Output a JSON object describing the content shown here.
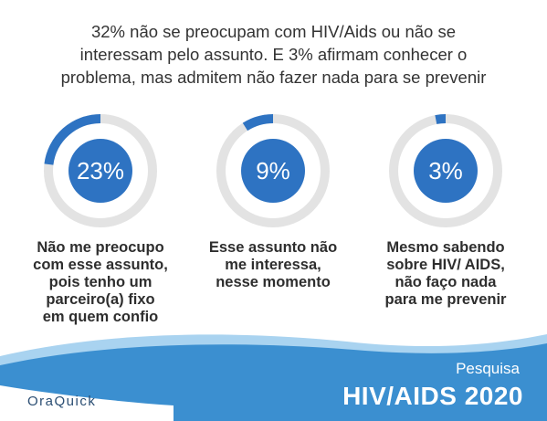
{
  "headline": {
    "line1": "32% não se preocupam com HIV/Aids ou não se",
    "line2": "interessam pelo assunto. E 3%  afirmam conhecer o",
    "line3": "problema, mas admitem não fazer nada para se prevenir"
  },
  "colors": {
    "accent": "#2e73c2",
    "track": "#e3e3e3",
    "wave_dark": "#3b8fd0",
    "wave_light": "#a9d3f0",
    "brand": "#2b4e73"
  },
  "chart_data": {
    "type": "donut",
    "max": 100,
    "items": [
      {
        "value": 23,
        "label": "23%",
        "caption": [
          "Não me preocupo",
          "com esse assunto,",
          "pois tenho um",
          "parceiro(a) fixo",
          "em quem confio"
        ]
      },
      {
        "value": 9,
        "label": "9%",
        "caption": [
          "Esse assunto não",
          "me interessa,",
          "nesse momento"
        ]
      },
      {
        "value": 3,
        "label": "3%",
        "caption": [
          "Mesmo sabendo",
          "sobre HIV/ AIDS,",
          "não faço nada",
          "para me prevenir"
        ]
      }
    ]
  },
  "footer": {
    "brand": "OraQuick",
    "subtitle": "Pesquisa",
    "title": "HIV/AIDS 2020"
  }
}
